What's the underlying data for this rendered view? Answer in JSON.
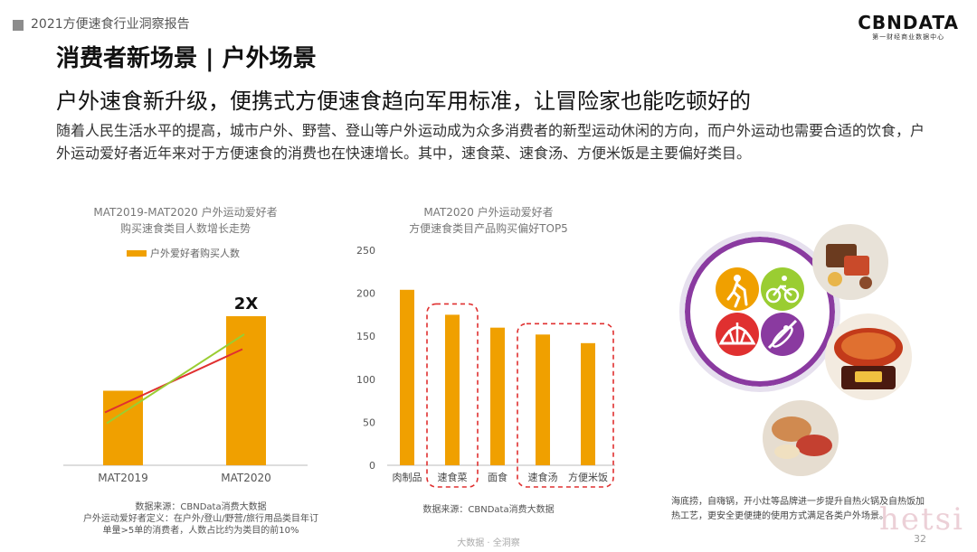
{
  "header": {
    "report_title": "2021方便速食行业洞察报告"
  },
  "logo": {
    "main": "CBNDATA",
    "sub": "第一财经商业数据中心"
  },
  "section_title": "消费者新场景 | 户外场景",
  "headline": "户外速食新升级，便携式方便速食趋向军用标准，让冒险家也能吃顿好的",
  "intro": "随着人民生活水平的提高，城市户外、野营、登山等户外运动成为众多消费者的新型运动休闲的方向，而户外运动也需要合适的饮食，户外运动爱好者近年来对于方便速食的消费也在快速增长。其中，速食菜、速食汤、方便米饭是主要偏好类目。",
  "chart_data": [
    {
      "type": "bar",
      "title": "MAT2019-MAT2020 户外运动爱好者\n购买速食类目人数增长走势",
      "categories": [
        "MAT2019",
        "MAT2020"
      ],
      "series": [
        {
          "name": "户外爱好者购买人数",
          "values": [
            1,
            2
          ]
        }
      ],
      "annotation": "2X",
      "legend": "top",
      "grid": false,
      "colors": {
        "bar": "#f0a000",
        "trend_red": "#e03030",
        "trend_green": "#9acd32"
      }
    },
    {
      "type": "bar",
      "title": "MAT2020 户外运动爱好者\n方便速食类目产品购买偏好TOP5",
      "categories": [
        "肉制品",
        "速食菜",
        "面食",
        "速食汤",
        "方便米饭"
      ],
      "values": [
        204,
        175,
        160,
        152,
        142
      ],
      "ylim": [
        0,
        250
      ],
      "yticks": [
        0,
        50,
        100,
        150,
        200,
        250
      ],
      "highlighted_groups": [
        [
          "速食菜"
        ],
        [
          "速食汤",
          "方便米饭"
        ]
      ],
      "grid": false,
      "colors": {
        "bar": "#f0a000",
        "highlight": "#e03030"
      }
    }
  ],
  "chart1_source": {
    "line1": "数据来源：CBNData消费大数据",
    "line2": "户外运动爱好者定义：在户外/登山/野营/旅行用品类目年订",
    "line3": "单量>5单的消费者，人数占比约为类目的前10%"
  },
  "chart2_source": "数据来源：CBNData消费大数据",
  "right_caption": "海底捞，自嗨锅，开小灶等品牌进一步提升自热火锅及自热饭加热工艺，更安全更便捷的使用方式满足各类户外场景。",
  "footer": "大数据 · 全洞察",
  "page_number": "32",
  "watermark": "hetsi",
  "icons": [
    "hiking-icon",
    "cycling-icon",
    "tent-icon",
    "kayak-icon"
  ],
  "icon_colors": [
    "#f0a000",
    "#9acd32",
    "#e03030",
    "#8a3aa0"
  ]
}
